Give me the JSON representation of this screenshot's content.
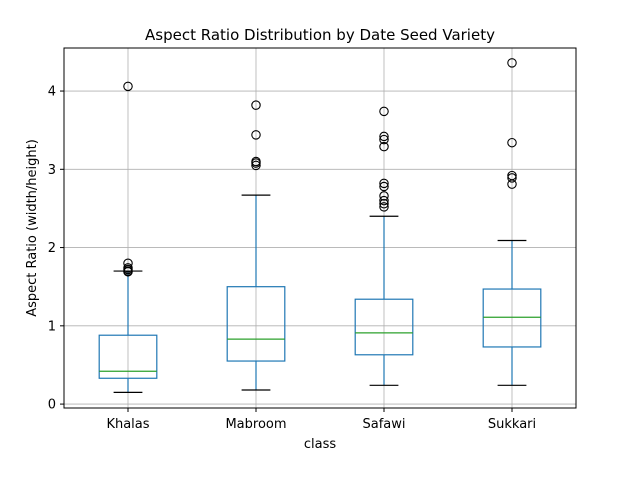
{
  "chart_data": {
    "type": "boxplot",
    "title": "Aspect Ratio Distribution by Date Seed Variety",
    "xlabel": "class",
    "ylabel": "Aspect Ratio (width/height)",
    "ylim": [
      -0.05,
      4.55
    ],
    "yticks": [
      0,
      1,
      2,
      3,
      4
    ],
    "grid": true,
    "colors": {
      "box": "#1f77b4",
      "median": "#2ca02c",
      "cap": "#000000",
      "grid": "#b0b0b0"
    },
    "categories": [
      "Khalas",
      "Mabroom",
      "Safawi",
      "Sukkari"
    ],
    "boxes": [
      {
        "category": "Khalas",
        "whisker_low": 0.15,
        "q1": 0.33,
        "median": 0.42,
        "q3": 0.88,
        "whisker_high": 1.7,
        "outliers": [
          4.06,
          1.8,
          1.74,
          1.72,
          1.7,
          1.69
        ]
      },
      {
        "category": "Mabroom",
        "whisker_low": 0.18,
        "q1": 0.55,
        "median": 0.83,
        "q3": 1.5,
        "whisker_high": 2.67,
        "outliers": [
          3.82,
          3.44,
          3.1,
          3.08,
          3.05
        ]
      },
      {
        "category": "Safawi",
        "whisker_low": 0.24,
        "q1": 0.63,
        "median": 0.91,
        "q3": 1.34,
        "whisker_high": 2.4,
        "outliers": [
          3.74,
          3.42,
          3.38,
          3.29,
          2.82,
          2.78,
          2.66,
          2.6,
          2.56,
          2.52
        ]
      },
      {
        "category": "Sukkari",
        "whisker_low": 0.24,
        "q1": 0.73,
        "median": 1.11,
        "q3": 1.47,
        "whisker_high": 2.09,
        "outliers": [
          4.36,
          3.34,
          2.92,
          2.89,
          2.81
        ]
      }
    ]
  }
}
